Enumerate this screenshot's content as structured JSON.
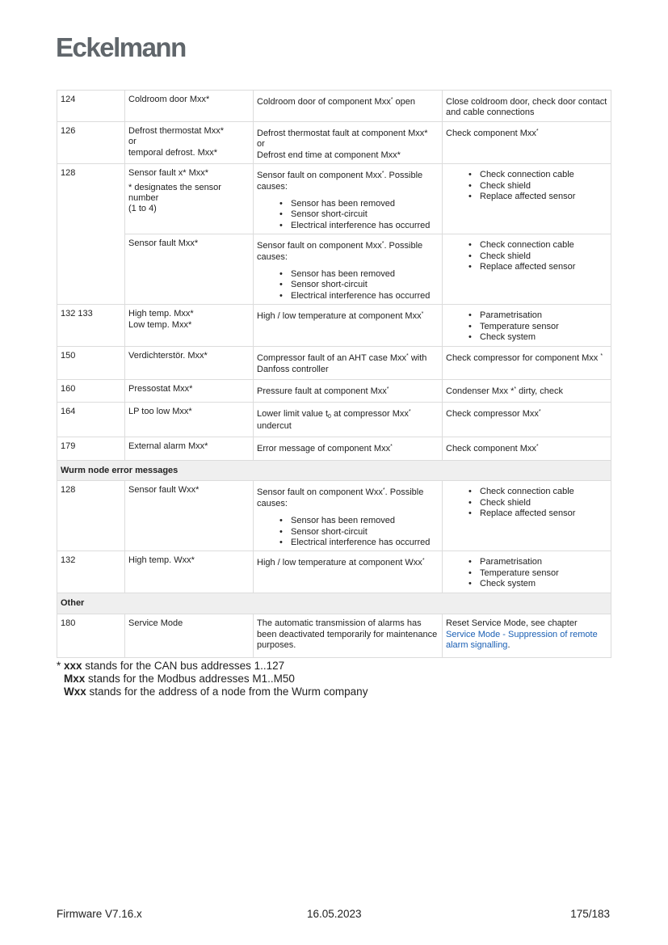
{
  "logo": "Eckelmann",
  "table": {
    "rows": [
      {
        "type": "row",
        "no": "124",
        "name": [
          [
            [
              "Coldroom door Mxx*"
            ]
          ]
        ],
        "desc": {
          "lines": [
            [
              [
                "Coldroom door of component Mxx"
              ],
              [
                "*",
                "sup"
              ],
              [
                " open"
              ]
            ]
          ]
        },
        "action": {
          "lines": [
            [
              [
                "Close coldroom door, check door contact and cable connections"
              ]
            ]
          ]
        }
      },
      {
        "type": "row",
        "no": "126",
        "name": [
          [
            [
              "Defrost thermostat Mxx*"
            ]
          ],
          [
            [
              "or"
            ]
          ],
          [
            [
              "temporal defrost. Mxx*"
            ]
          ]
        ],
        "desc": {
          "lines": [
            [
              [
                "Defrost thermostat fault at component Mxx*"
              ]
            ],
            [
              [
                "or"
              ]
            ],
            [
              [
                "Defrost end time at component Mxx*"
              ]
            ]
          ]
        },
        "action": {
          "lines": [
            [
              [
                "Check component Mxx"
              ],
              [
                "*",
                "sup"
              ]
            ]
          ]
        }
      },
      {
        "type": "row",
        "no": "128",
        "rowspan": 2,
        "name": [
          [
            [
              "Sensor fault x* Mxx*"
            ]
          ],
          [
            [
              "* designates the sensor number"
            ]
          ],
          [
            [
              "(1 to 4)"
            ]
          ]
        ],
        "desc": {
          "lines": [
            [
              [
                "Sensor fault on component Mxx"
              ],
              [
                "*",
                "sup"
              ],
              [
                ". Possible causes:"
              ]
            ]
          ],
          "bullets": [
            "Sensor has been removed",
            "Sensor short-circuit",
            "Electrical interference has occurred"
          ]
        },
        "action": {
          "bullets": [
            "Check connection cable",
            "Check shield",
            "Replace affected sensor"
          ]
        }
      },
      {
        "type": "row",
        "no": null,
        "name": [
          [
            [
              "Sensor fault Mxx*"
            ]
          ]
        ],
        "desc": {
          "lines": [
            [
              [
                "Sensor fault on component Mxx"
              ],
              [
                "*",
                "sup"
              ],
              [
                ". Possible causes:"
              ]
            ]
          ],
          "bullets": [
            "Sensor has been removed",
            "Sensor short-circuit",
            "Electrical interference has occurred"
          ]
        },
        "action": {
          "bullets": [
            "Check connection cable",
            "Check shield",
            "Replace affected sensor"
          ]
        }
      },
      {
        "type": "row",
        "no": "132 133",
        "name": [
          [
            [
              "High temp. Mxx*"
            ]
          ],
          [
            [
              "Low temp. Mxx*"
            ]
          ]
        ],
        "desc": {
          "lines": [
            [
              [
                "High / low temperature at component Mxx"
              ],
              [
                "*",
                "sup"
              ]
            ]
          ]
        },
        "action": {
          "bullets": [
            "Parametrisation",
            "Temperature sensor",
            "Check system"
          ]
        }
      },
      {
        "type": "row",
        "no": "150",
        "name": [
          [
            [
              "Verdichterstör. Mxx*"
            ]
          ]
        ],
        "desc": {
          "lines": [
            [
              [
                "Compressor fault of an AHT case Mxx"
              ],
              [
                "*",
                "sup"
              ],
              [
                " with Danfoss controller"
              ]
            ]
          ]
        },
        "action": {
          "lines": [
            [
              [
                "Check compressor for component Mxx "
              ],
              [
                "*",
                "sup"
              ]
            ]
          ]
        }
      },
      {
        "type": "row",
        "no": "160",
        "name": [
          [
            [
              "Pressostat Mxx*"
            ]
          ]
        ],
        "desc": {
          "lines": [
            [
              [
                "Pressure fault at component Mxx"
              ],
              [
                "*",
                "sup"
              ]
            ]
          ]
        },
        "action": {
          "lines": [
            [
              [
                "Condenser Mxx *"
              ],
              [
                "*",
                "sup"
              ],
              [
                " dirty, check"
              ]
            ]
          ]
        }
      },
      {
        "type": "row",
        "no": "164",
        "name": [
          [
            [
              "LP too low Mxx*"
            ]
          ]
        ],
        "desc": {
          "lines": [
            [
              [
                "Lower limit value t"
              ],
              [
                "0",
                "sub"
              ],
              [
                " at compressor Mxx"
              ],
              [
                "*",
                "sup"
              ],
              [
                " undercut"
              ]
            ]
          ]
        },
        "action": {
          "lines": [
            [
              [
                "Check compressor Mxx"
              ],
              [
                "*",
                "sup"
              ]
            ]
          ]
        }
      },
      {
        "type": "row",
        "no": "179",
        "name": [
          [
            [
              "External alarm Mxx*"
            ]
          ]
        ],
        "desc": {
          "lines": [
            [
              [
                "Error message of component Mxx"
              ],
              [
                "*",
                "sup"
              ]
            ]
          ]
        },
        "action": {
          "lines": [
            [
              [
                "Check component Mxx"
              ],
              [
                "*",
                "sup"
              ]
            ]
          ]
        }
      },
      {
        "type": "group",
        "label": "Wurm node error messages"
      },
      {
        "type": "row",
        "no": "128",
        "name": [
          [
            [
              "Sensor fault Wxx*"
            ]
          ]
        ],
        "desc": {
          "lines": [
            [
              [
                "Sensor fault on component Wxx"
              ],
              [
                "*",
                "sup"
              ],
              [
                ". Possible causes:"
              ]
            ]
          ],
          "bullets": [
            "Sensor has been removed",
            "Sensor short-circuit",
            "Electrical interference has occurred"
          ]
        },
        "action": {
          "bullets": [
            "Check connection cable",
            "Check shield",
            "Replace affected sensor"
          ]
        }
      },
      {
        "type": "row",
        "no": "132",
        "name": [
          [
            [
              "High temp. Wxx*"
            ]
          ]
        ],
        "desc": {
          "lines": [
            [
              [
                "High / low temperature at component Wxx"
              ],
              [
                "*",
                "sup"
              ]
            ]
          ]
        },
        "action": {
          "bullets": [
            "Parametrisation",
            "Temperature sensor",
            "Check system"
          ]
        }
      },
      {
        "type": "group",
        "label": "Other"
      },
      {
        "type": "row",
        "no": "180",
        "flat": true,
        "name": [
          [
            [
              "Service Mode"
            ]
          ]
        ],
        "desc": {
          "lines": [
            [
              [
                "The automatic transmission of alarms has been deactivated temporarily for maintenance purposes."
              ]
            ]
          ]
        },
        "action": {
          "lines": [
            [
              [
                "Reset Service Mode, see chapter "
              ],
              [
                "Service Mode - Suppression of remote alarm signalling",
                "link"
              ],
              [
                "."
              ]
            ]
          ]
        }
      }
    ]
  },
  "notes": {
    "line1": {
      "prefix": "* ",
      "bold": "xxx",
      "text": " stands for the CAN bus addresses 1..127"
    },
    "line2": {
      "bold": "Mxx",
      "text": " stands for the Modbus addresses M1..M50"
    },
    "line3": {
      "bold": "Wxx",
      "text": " stands for the address of a node from the Wurm company"
    }
  },
  "footer": {
    "firmware": "Firmware V7.16.x",
    "date": "16.05.2023",
    "page": "175/183"
  },
  "colors": {
    "logo": "#60666b",
    "link": "#1a5fb4",
    "group_bg": "#efefef",
    "border": "#dcdcdc"
  }
}
